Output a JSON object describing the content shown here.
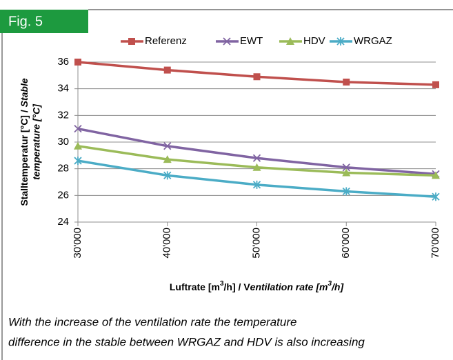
{
  "figure_tag": "Fig. 5",
  "chart_data": {
    "type": "line",
    "y_label": [
      "Stalltemperatur [°C] / ",
      "Stable",
      "temperature  [°C]"
    ],
    "x_label": [
      "Luftrate [m",
      "3",
      "/h] / V",
      "entilation rate [m",
      "3",
      "/h]"
    ],
    "categories": [
      "30'000",
      "40'000",
      "50'000",
      "60'000",
      "70'000"
    ],
    "series": [
      {
        "name": "Referenz",
        "color": "#c0504d",
        "marker": "square",
        "values": [
          36.0,
          35.4,
          34.9,
          34.5,
          34.3
        ]
      },
      {
        "name": "EWT",
        "color": "#8064a2",
        "marker": "x",
        "values": [
          31.0,
          29.7,
          28.8,
          28.1,
          27.6
        ]
      },
      {
        "name": "HDV",
        "color": "#9bbb59",
        "marker": "triangle",
        "values": [
          29.7,
          28.7,
          28.1,
          27.7,
          27.5
        ]
      },
      {
        "name": "WRGAZ",
        "color": "#4bacc6",
        "marker": "asterisk",
        "values": [
          28.6,
          27.5,
          26.8,
          26.3,
          25.9
        ]
      }
    ],
    "ylim": [
      24,
      36
    ],
    "yticks": [
      24,
      26,
      28,
      30,
      32,
      34,
      36
    ],
    "grid": true
  },
  "caption": [
    "With the increase of the ventilation rate the temperature",
    "difference in the stable between WRGAZ and HDV is also increasing"
  ]
}
